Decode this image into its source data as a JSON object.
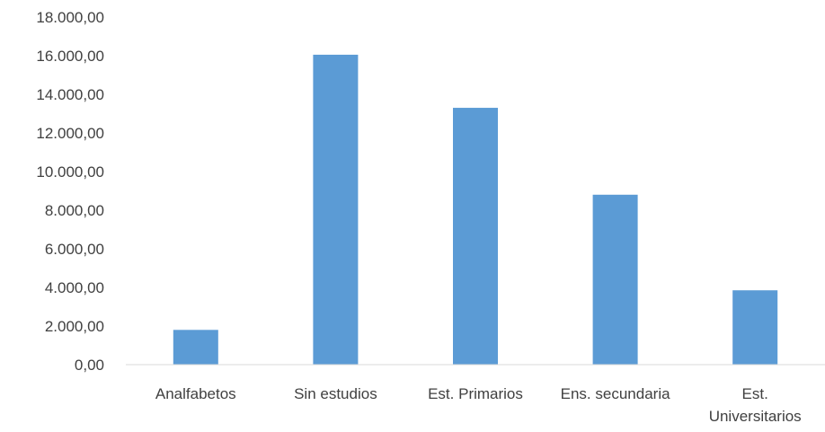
{
  "chart_data": {
    "type": "bar",
    "categories": [
      [
        "Analfabetos"
      ],
      [
        "Sin estudios"
      ],
      [
        "Est. Primarios"
      ],
      [
        "Ens. secundaria"
      ],
      [
        "Est.",
        "Universitarios"
      ]
    ],
    "values": [
      1800,
      16050,
      13300,
      8800,
      3850
    ],
    "ylim": [
      0,
      18000
    ],
    "yticks": [
      "0,00",
      "2.000,00",
      "4.000,00",
      "6.000,00",
      "8.000,00",
      "10.000,00",
      "12.000,00",
      "14.000,00",
      "16.000,00",
      "18.000,00"
    ],
    "grid": false,
    "bar_color": "#5b9bd5",
    "axis_color": "#d9d9d9",
    "text_color": "#404040"
  }
}
